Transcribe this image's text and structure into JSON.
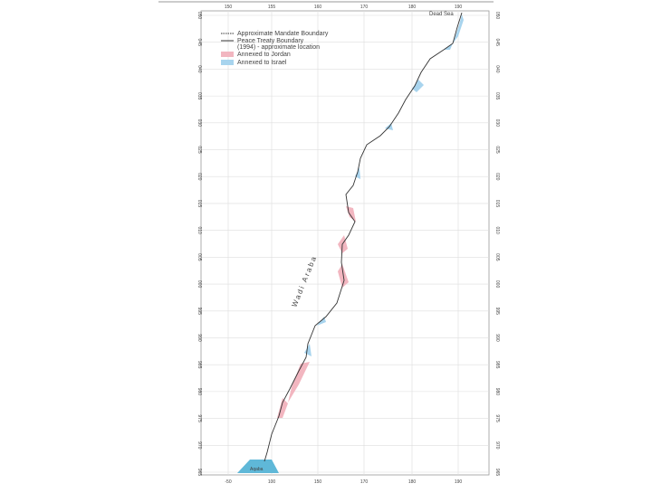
{
  "map": {
    "legend": [
      {
        "label": "Approximate Mandate Boundary"
      },
      {
        "label": "Peace Treaty Boundary"
      },
      {
        "label": "(1994) - approximate location"
      },
      {
        "label": "Annexed to Jordan"
      },
      {
        "label": "Annexed to Israel"
      }
    ],
    "places": {
      "dead_sea": "Dead Sea",
      "wadi": "Wadi Araba",
      "aqaba": "Aqaba"
    },
    "top_labels": [
      "150",
      "155",
      "160",
      "170",
      "180",
      "190"
    ],
    "bottom_labels": [
      "-50",
      "100",
      "150",
      "170",
      "180",
      "190"
    ],
    "left_labels": [
      "050",
      "045",
      "040",
      "035",
      "030",
      "025",
      "020",
      "015",
      "010",
      "005",
      "000",
      "995",
      "990",
      "985",
      "980",
      "975",
      "970",
      "965"
    ],
    "right_labels": [
      "050",
      "045",
      "040",
      "035",
      "030",
      "025",
      "020",
      "015",
      "010",
      "005",
      "000",
      "995",
      "990",
      "985",
      "980",
      "975",
      "970",
      "965"
    ]
  }
}
